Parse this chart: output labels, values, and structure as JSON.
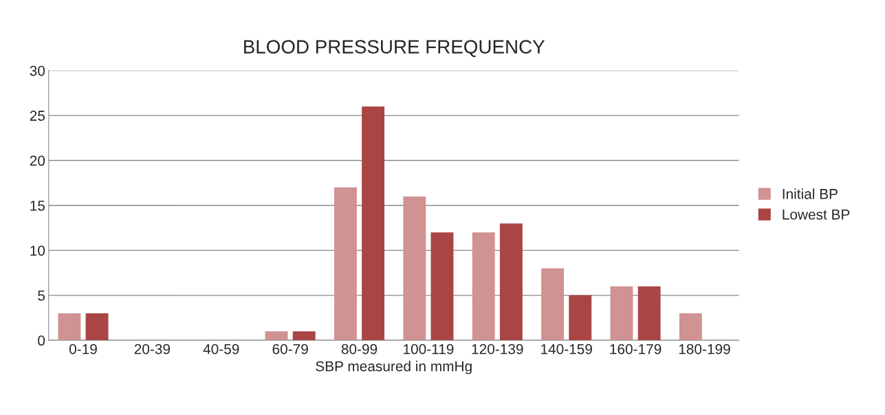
{
  "chart_data": {
    "type": "bar",
    "title": "BLOOD PRESSURE FREQUENCY",
    "xlabel": "SBP measured in mmHg",
    "categories": [
      "0-19",
      "20-39",
      "40-59",
      "60-79",
      "80-99",
      "100-119",
      "120-139",
      "140-159",
      "160-179",
      "180-199"
    ],
    "series": [
      {
        "name": "Initial BP",
        "color": "#d09292",
        "values": [
          3,
          0,
          0,
          1,
          17,
          16,
          12,
          8,
          6,
          3
        ]
      },
      {
        "name": "Lowest BP",
        "color": "#aa4545",
        "values": [
          3,
          0,
          0,
          1,
          26,
          12,
          13,
          5,
          6,
          0
        ]
      }
    ],
    "ylim": [
      0,
      30
    ],
    "yticks": [
      0,
      5,
      10,
      15,
      20,
      25,
      30
    ],
    "grid": "y",
    "legend": "right"
  }
}
